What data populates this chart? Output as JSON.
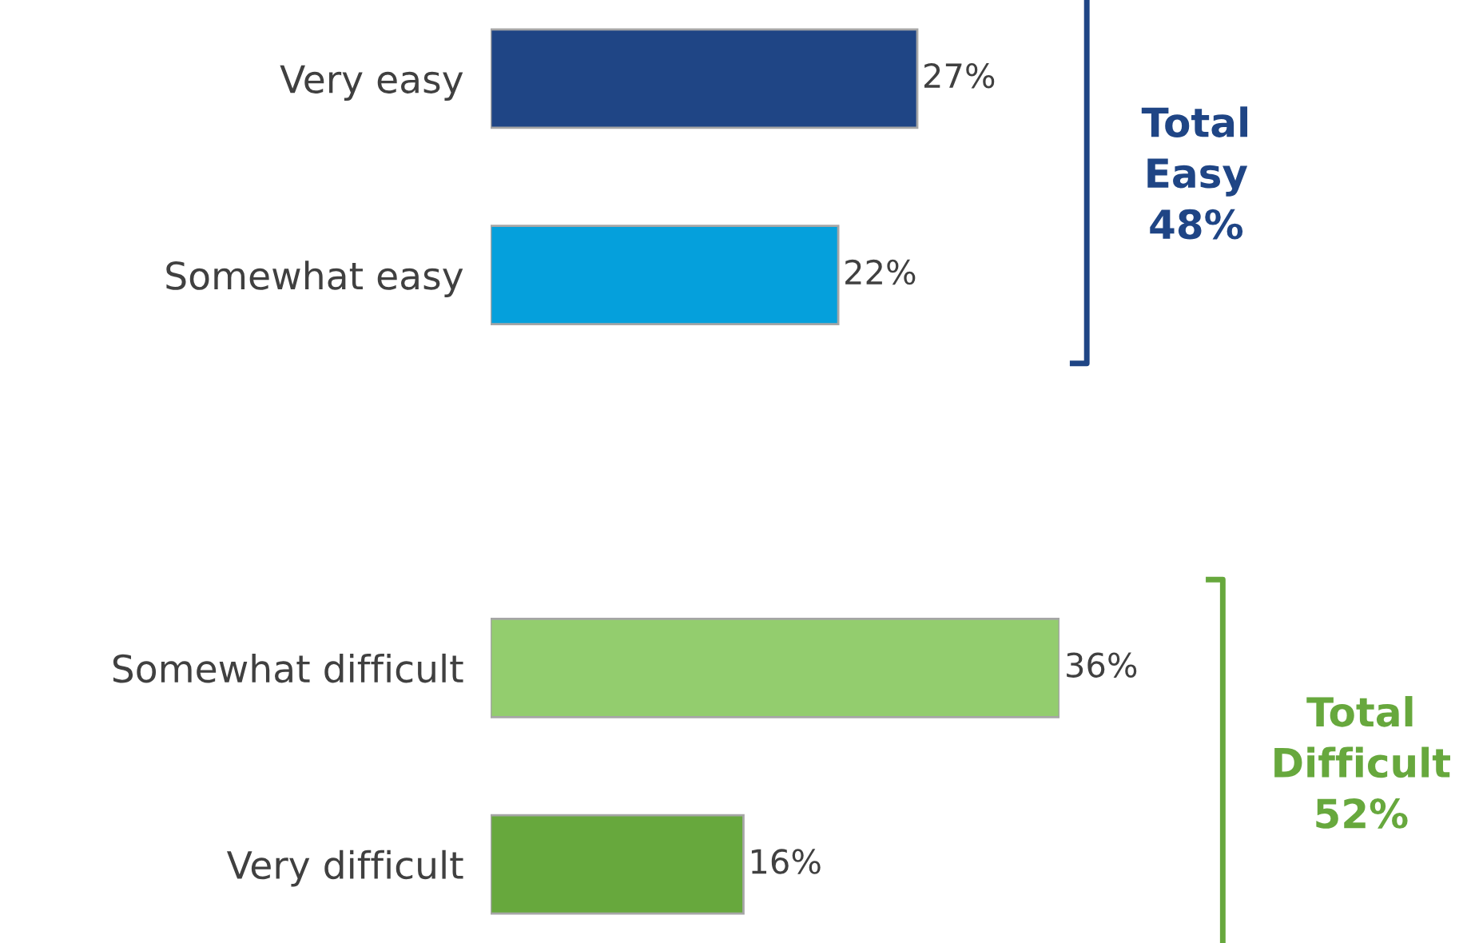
{
  "chart_data": {
    "type": "bar",
    "orientation": "horizontal",
    "categories": [
      "Very easy",
      "Somewhat easy",
      null,
      "Somewhat difficult",
      "Very difficult"
    ],
    "values": [
      27,
      22,
      null,
      36,
      16
    ],
    "colors": [
      "#1f4585",
      "#05a0dc",
      null,
      "#93cd6e",
      "#67a83d"
    ],
    "value_labels": [
      "27%",
      "22%",
      null,
      "36%",
      "16%"
    ],
    "annotations": [
      "Total\nEasy\n48%",
      "Total\nDifficult\n52%"
    ],
    "grid": false,
    "legend": false
  }
}
